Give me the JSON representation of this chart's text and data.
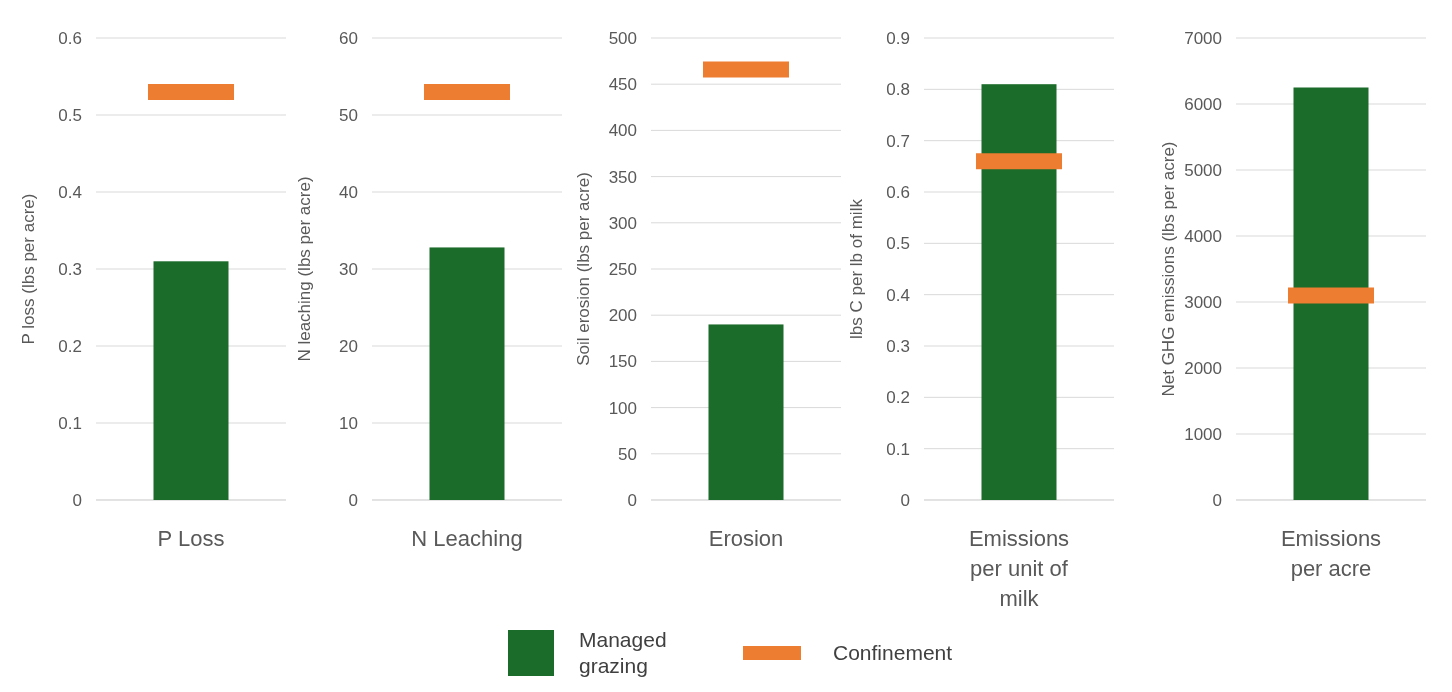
{
  "chart_data": [
    {
      "type": "bar",
      "categories": [
        "P Loss"
      ],
      "ylabel": "P loss (lbs per acre)",
      "ylim": [
        0,
        0.6
      ],
      "yticks": [
        0,
        0.1,
        0.2,
        0.3,
        0.4,
        0.5,
        0.6
      ],
      "grid": "y",
      "series": [
        {
          "color": "#1b6b2a",
          "values": [
            0.31
          ]
        }
      ],
      "ref_lines": [
        {
          "axis": "y",
          "value": 0.53,
          "color": "#ed7d31"
        }
      ]
    },
    {
      "type": "bar",
      "categories": [
        "N Leaching"
      ],
      "ylabel": "N leaching (lbs per acre)",
      "ylim": [
        0,
        60
      ],
      "yticks": [
        0,
        10,
        20,
        30,
        40,
        50,
        60
      ],
      "grid": "y",
      "series": [
        {
          "color": "#1b6b2a",
          "values": [
            32.8
          ]
        }
      ],
      "ref_lines": [
        {
          "axis": "y",
          "value": 53,
          "color": "#ed7d31"
        }
      ]
    },
    {
      "type": "bar",
      "categories": [
        "Erosion"
      ],
      "ylabel": "Soil erosion (lbs per acre)",
      "ylim": [
        0,
        500
      ],
      "yticks": [
        0,
        50,
        100,
        150,
        200,
        250,
        300,
        350,
        400,
        450,
        500
      ],
      "grid": "y",
      "legend": "bottom",
      "series": [
        {
          "name": "Managed grazing",
          "color": "#1b6b2a",
          "values": [
            190
          ]
        }
      ],
      "ref_lines": [
        {
          "axis": "y",
          "value": 466,
          "color": "#ed7d31",
          "label": "Confinement"
        }
      ]
    },
    {
      "type": "bar",
      "categories": [
        "Emissions per unit of milk"
      ],
      "ylabel": "lbs C per lb of milk",
      "ylim": [
        0,
        0.9
      ],
      "yticks": [
        0,
        0.1,
        0.2,
        0.3,
        0.4,
        0.5,
        0.6,
        0.7,
        0.8,
        0.9
      ],
      "grid": "y",
      "series": [
        {
          "color": "#1b6b2a",
          "values": [
            0.81
          ]
        }
      ],
      "ref_lines": [
        {
          "axis": "y",
          "value": 0.66,
          "color": "#ed7d31"
        }
      ]
    },
    {
      "type": "bar",
      "categories": [
        "Emissions per acre"
      ],
      "ylabel": "Net GHG emissions  (lbs per acre)",
      "ylim": [
        0,
        7000
      ],
      "yticks": [
        0,
        1000,
        2000,
        3000,
        4000,
        5000,
        6000,
        7000
      ],
      "grid": "y",
      "series": [
        {
          "color": "#1b6b2a",
          "values": [
            6250
          ]
        }
      ],
      "ref_lines": [
        {
          "axis": "y",
          "value": 3100,
          "color": "#ed7d31"
        }
      ]
    }
  ]
}
